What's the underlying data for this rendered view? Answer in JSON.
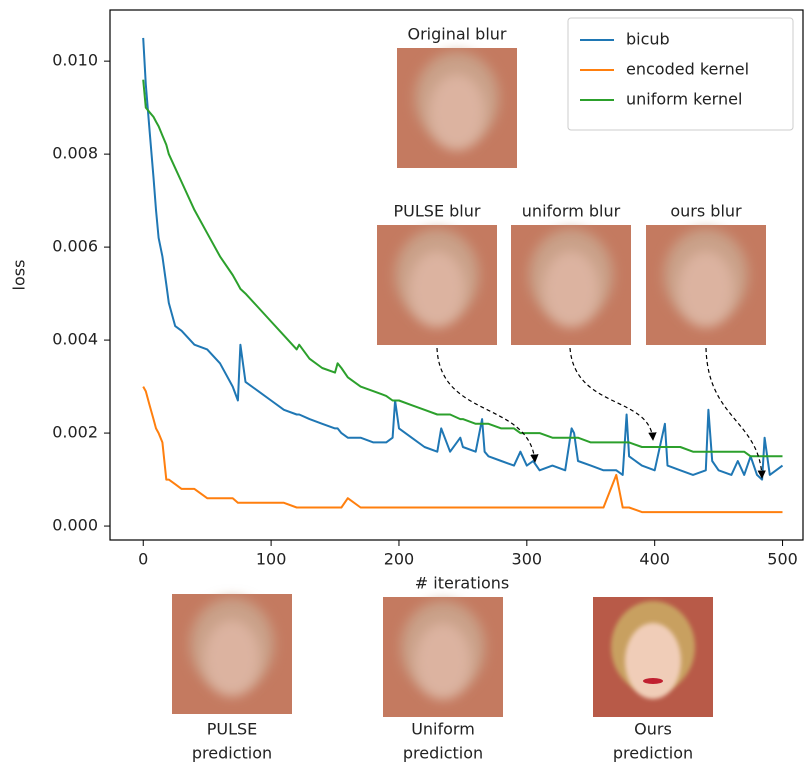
{
  "chart_data": {
    "type": "line",
    "xlabel": "# iterations",
    "ylabel": "loss",
    "x": [
      0,
      2,
      5,
      8,
      10,
      12,
      15,
      18,
      20,
      25,
      30,
      40,
      50,
      60,
      70,
      74,
      76,
      80,
      90,
      100,
      110,
      120,
      122,
      130,
      140,
      150,
      152,
      155,
      160,
      170,
      180,
      190,
      195,
      197,
      200,
      210,
      220,
      230,
      233,
      240,
      248,
      250,
      260,
      265,
      267,
      270,
      280,
      290,
      295,
      300,
      305,
      310,
      320,
      330,
      335,
      337,
      340,
      350,
      360,
      370,
      375,
      378,
      380,
      390,
      400,
      408,
      410,
      420,
      430,
      440,
      442,
      445,
      450,
      460,
      465,
      470,
      475,
      480,
      484,
      486,
      490,
      500
    ],
    "series": [
      {
        "name": "bicub",
        "color": "#1f77b4",
        "values": [
          0.0105,
          0.0095,
          0.0085,
          0.0075,
          0.0068,
          0.0062,
          0.0058,
          0.0052,
          0.0048,
          0.0043,
          0.0042,
          0.0039,
          0.0038,
          0.0035,
          0.003,
          0.0027,
          0.0039,
          0.0031,
          0.0029,
          0.0027,
          0.0025,
          0.0024,
          0.0024,
          0.0023,
          0.0022,
          0.0021,
          0.0021,
          0.002,
          0.0019,
          0.0019,
          0.0018,
          0.0018,
          0.0019,
          0.0027,
          0.0021,
          0.0019,
          0.0017,
          0.0016,
          0.0021,
          0.0016,
          0.0019,
          0.0017,
          0.0016,
          0.0023,
          0.0016,
          0.0015,
          0.0014,
          0.0013,
          0.0016,
          0.0013,
          0.0014,
          0.0012,
          0.0013,
          0.0012,
          0.0021,
          0.002,
          0.0014,
          0.0013,
          0.0012,
          0.0012,
          0.0011,
          0.0024,
          0.0015,
          0.0013,
          0.0012,
          0.0022,
          0.0013,
          0.0012,
          0.0011,
          0.0012,
          0.0025,
          0.0014,
          0.0012,
          0.0011,
          0.0014,
          0.0011,
          0.0015,
          0.0011,
          0.001,
          0.0019,
          0.0011,
          0.0013
        ]
      },
      {
        "name": "encoded kernel",
        "color": "#ff7f0e",
        "values": [
          0.003,
          0.0029,
          0.0026,
          0.0023,
          0.0021,
          0.002,
          0.0018,
          0.001,
          0.001,
          0.0009,
          0.0008,
          0.0008,
          0.0006,
          0.0006,
          0.0006,
          0.0005,
          0.0005,
          0.0005,
          0.0005,
          0.0005,
          0.0005,
          0.0004,
          0.0004,
          0.0004,
          0.0004,
          0.0004,
          0.0004,
          0.0004,
          0.0006,
          0.0004,
          0.0004,
          0.0004,
          0.0004,
          0.0004,
          0.0004,
          0.0004,
          0.0004,
          0.0004,
          0.0004,
          0.0004,
          0.0004,
          0.0004,
          0.0004,
          0.0004,
          0.0004,
          0.0004,
          0.0004,
          0.0004,
          0.0004,
          0.0004,
          0.0004,
          0.0004,
          0.0004,
          0.0004,
          0.0004,
          0.0004,
          0.0004,
          0.0004,
          0.0004,
          0.0011,
          0.0004,
          0.0004,
          0.0004,
          0.0003,
          0.0003,
          0.0003,
          0.0003,
          0.0003,
          0.0003,
          0.0003,
          0.0003,
          0.0003,
          0.0003,
          0.0003,
          0.0003,
          0.0003,
          0.0003,
          0.0003,
          0.0003,
          0.0003,
          0.0003,
          0.0003
        ]
      },
      {
        "name": "uniform kernel",
        "color": "#2ca02c",
        "values": [
          0.0096,
          0.009,
          0.0089,
          0.0088,
          0.0087,
          0.0086,
          0.0084,
          0.0082,
          0.008,
          0.0077,
          0.0074,
          0.0068,
          0.0063,
          0.0058,
          0.0054,
          0.0052,
          0.0051,
          0.005,
          0.0047,
          0.0044,
          0.0041,
          0.0038,
          0.0039,
          0.0036,
          0.0034,
          0.0033,
          0.0035,
          0.0034,
          0.0032,
          0.003,
          0.0029,
          0.0028,
          0.0027,
          0.0027,
          0.0027,
          0.0026,
          0.0025,
          0.0024,
          0.0024,
          0.0024,
          0.0023,
          0.0023,
          0.0022,
          0.0022,
          0.0022,
          0.0022,
          0.0021,
          0.0021,
          0.002,
          0.002,
          0.002,
          0.002,
          0.0019,
          0.0019,
          0.0019,
          0.0019,
          0.0019,
          0.0018,
          0.0018,
          0.0018,
          0.0018,
          0.0018,
          0.0018,
          0.0017,
          0.0017,
          0.0017,
          0.0017,
          0.0017,
          0.0016,
          0.0016,
          0.0016,
          0.0016,
          0.0016,
          0.0016,
          0.0016,
          0.0016,
          0.0015,
          0.0015,
          0.0015,
          0.0015,
          0.0015,
          0.0015
        ]
      }
    ],
    "xlim": [
      -26,
      516
    ],
    "ylim": [
      -0.0003,
      0.0111
    ],
    "xticks": [
      0,
      100,
      200,
      300,
      400,
      500
    ],
    "yticks": [
      {
        "value": 0,
        "label": "0.000"
      },
      {
        "value": 0.002,
        "label": "0.002"
      },
      {
        "value": 0.004,
        "label": "0.004"
      },
      {
        "value": 0.006,
        "label": "0.006"
      },
      {
        "value": 0.008,
        "label": "0.008"
      },
      {
        "value": 0.01,
        "label": "0.010"
      }
    ],
    "legend": "upper right",
    "insets": [
      {
        "label": "Original blur"
      },
      {
        "label": "PULSE blur"
      },
      {
        "label": "uniform blur"
      },
      {
        "label": "ours blur"
      }
    ],
    "predictions": [
      {
        "label": [
          "PULSE",
          "prediction"
        ]
      },
      {
        "label": [
          "Uniform",
          "prediction"
        ]
      },
      {
        "label": [
          "Ours",
          "prediction"
        ]
      }
    ]
  }
}
